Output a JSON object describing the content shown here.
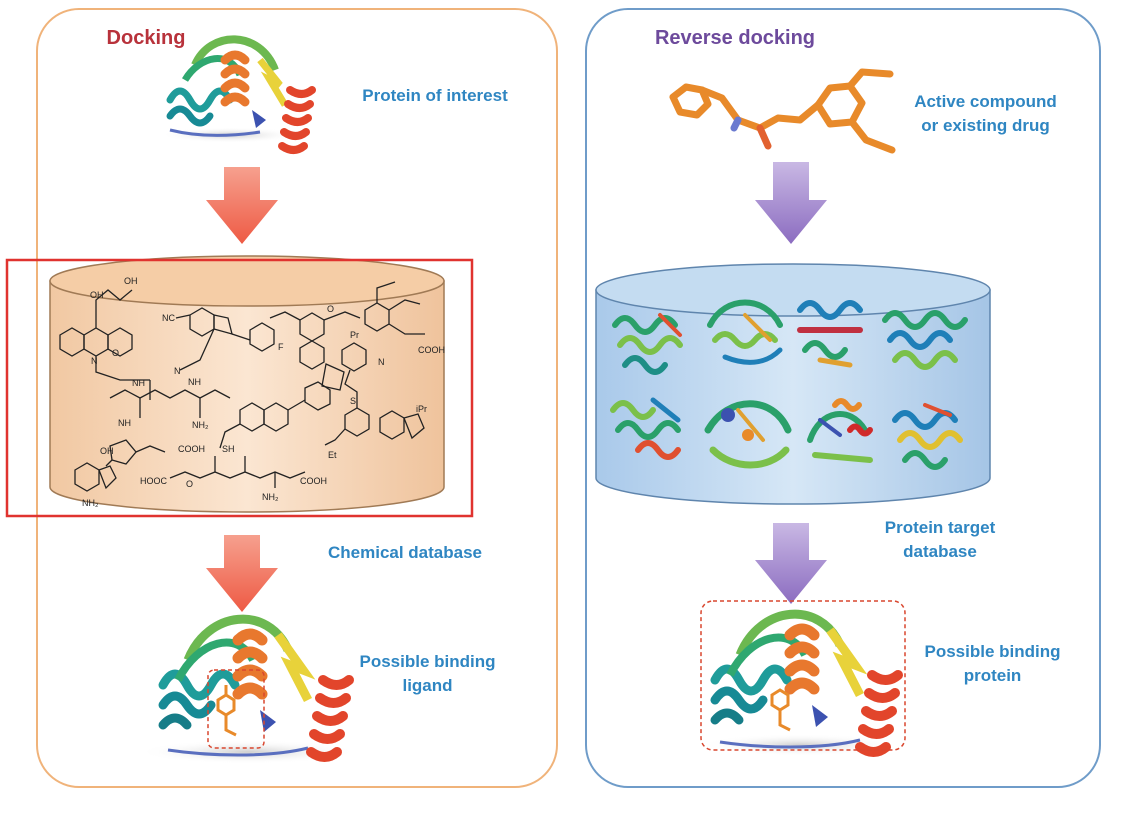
{
  "colors": {
    "docking_panel_border": "#f0b37a",
    "reverse_panel_border": "#6f9cc9",
    "docking_arrow": "#f2735d",
    "reverse_arrow": "#9a7ec8",
    "label_blue": "#2f86c2",
    "docking_title": "#b8323b",
    "reverse_title": "#6d4a9c",
    "chemical_cylinder_fill": "#f8dcc0",
    "protein_cylinder_fill": "#bcd6ee",
    "highlight_box": "#e0332f",
    "ligand_orange": "#e88a2a"
  },
  "docking": {
    "title": "Docking",
    "protein_label": "Protein of interest",
    "database_label": "Chemical database",
    "result_label_line1": "Possible binding",
    "result_label_line2": "ligand",
    "chem_labels": {
      "nc": "NC",
      "o": "O",
      "nh": "NH",
      "nh2": "NH₂",
      "oh": "OH",
      "f": "F",
      "sh": "SH",
      "cooh": "COOH",
      "hooc": "HOOC",
      "et": "Et",
      "pr": "Pr",
      "n": "N",
      "s": "S",
      "ipr": "iPr"
    }
  },
  "reverse": {
    "title": "Reverse docking",
    "compound_label_line1": "Active compound",
    "compound_label_line2": "or existing drug",
    "database_label_line1": "Protein target",
    "database_label_line2": "database",
    "result_label_line1": "Possible binding",
    "result_label_line2": "protein"
  }
}
